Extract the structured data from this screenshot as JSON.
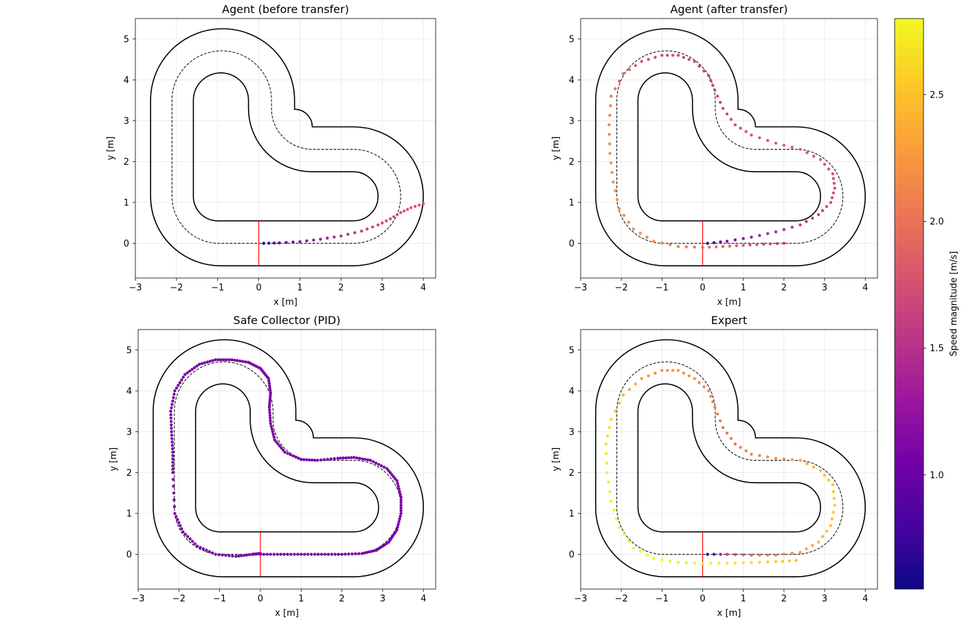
{
  "chart_data": [
    {
      "type": "scatter",
      "title": "Agent (before transfer)",
      "xlabel": "x [m]",
      "ylabel": "y [m]",
      "xlim": [
        -3,
        4.3
      ],
      "ylim": [
        -0.85,
        5.5
      ],
      "xticks": [
        -3,
        -2,
        -1,
        0,
        1,
        2,
        3,
        4
      ],
      "yticks": [
        0,
        1,
        2,
        3,
        4,
        5
      ],
      "grid": true,
      "path": {
        "x": [
          0.12,
          0.5,
          1.0,
          1.5,
          2.0,
          2.5,
          2.9,
          3.2,
          3.45,
          3.7,
          4.0
        ],
        "y": [
          0.0,
          0.01,
          0.04,
          0.1,
          0.18,
          0.3,
          0.45,
          0.6,
          0.75,
          0.87,
          0.97
        ],
        "speed": [
          0.6,
          0.95,
          1.15,
          1.35,
          1.5,
          1.62,
          1.7,
          1.74,
          1.77,
          1.8,
          1.82
        ]
      }
    },
    {
      "type": "scatter",
      "title": "Agent (after transfer)",
      "xlabel": "x [m]",
      "ylabel": "y [m]",
      "xlim": [
        -3,
        4.3
      ],
      "ylim": [
        -0.85,
        5.5
      ],
      "xticks": [
        -3,
        -2,
        -1,
        0,
        1,
        2,
        3,
        4
      ],
      "yticks": [
        0,
        1,
        2,
        3,
        4,
        5
      ],
      "grid": true,
      "path": {
        "x": [
          0.12,
          0.6,
          1.2,
          1.8,
          2.4,
          2.85,
          3.15,
          3.25,
          3.2,
          2.9,
          2.4,
          1.8,
          1.2,
          0.8,
          0.5,
          0.3,
          0.15,
          -0.2,
          -0.6,
          -1.0,
          -1.5,
          -1.95,
          -2.25,
          -2.3,
          -2.28,
          -2.2,
          -2.05,
          -1.7,
          -1.2,
          -0.6,
          0.0,
          0.5,
          1.0,
          1.5,
          2.0
        ],
        "y": [
          0.0,
          0.05,
          0.15,
          0.28,
          0.45,
          0.7,
          1.0,
          1.35,
          1.7,
          2.05,
          2.3,
          2.45,
          2.65,
          2.9,
          3.3,
          3.75,
          4.1,
          4.45,
          4.6,
          4.6,
          4.45,
          4.15,
          3.6,
          2.9,
          2.2,
          1.5,
          0.85,
          0.35,
          0.05,
          -0.08,
          -0.1,
          -0.08,
          -0.05,
          -0.02,
          0.0
        ],
        "speed": [
          0.6,
          1.1,
          1.3,
          1.45,
          1.55,
          1.62,
          1.7,
          1.75,
          1.78,
          1.8,
          1.82,
          1.83,
          1.8,
          1.75,
          1.7,
          1.65,
          1.63,
          1.65,
          1.7,
          1.72,
          1.78,
          1.9,
          2.05,
          2.15,
          2.2,
          2.22,
          2.2,
          2.18,
          2.15,
          2.1,
          2.0,
          1.9,
          1.8,
          1.7,
          1.6
        ]
      }
    },
    {
      "type": "scatter",
      "title": "Safe Collector (PID)",
      "xlabel": "x [m]",
      "ylabel": "y [m]",
      "xlim": [
        -3,
        4.3
      ],
      "ylim": [
        -0.85,
        5.5
      ],
      "xticks": [
        -3,
        -2,
        -1,
        0,
        1,
        2,
        3,
        4
      ],
      "yticks": [
        0,
        1,
        2,
        3,
        4,
        5
      ],
      "grid": true,
      "path": {
        "x": [
          0.0,
          0.5,
          1.0,
          1.5,
          2.0,
          2.5,
          2.85,
          3.15,
          3.35,
          3.45,
          3.45,
          3.35,
          3.1,
          2.7,
          2.3,
          1.9,
          1.4,
          1.0,
          0.6,
          0.35,
          0.25,
          0.22,
          0.25,
          0.2,
          0.0,
          -0.3,
          -0.7,
          -1.1,
          -1.5,
          -1.85,
          -2.1,
          -2.2,
          -2.18,
          -2.15,
          -2.15,
          -2.1,
          -1.9,
          -1.55,
          -1.1,
          -0.6,
          -0.2,
          0.0
        ],
        "y": [
          0.0,
          0.0,
          0.0,
          0.0,
          0.0,
          0.02,
          0.1,
          0.3,
          0.6,
          1.0,
          1.4,
          1.8,
          2.1,
          2.3,
          2.37,
          2.35,
          2.3,
          2.32,
          2.5,
          2.8,
          3.2,
          3.6,
          3.95,
          4.3,
          4.55,
          4.7,
          4.76,
          4.76,
          4.65,
          4.4,
          4.0,
          3.5,
          3.0,
          2.5,
          2.0,
          1.0,
          0.55,
          0.2,
          0.0,
          -0.05,
          0.0,
          0.02
        ],
        "speed": [
          1.1,
          1.1,
          1.1,
          1.1,
          1.1,
          1.1,
          1.1,
          1.1,
          1.1,
          1.1,
          1.1,
          1.1,
          1.1,
          1.1,
          1.1,
          1.1,
          1.1,
          1.1,
          1.1,
          1.1,
          1.1,
          1.1,
          1.1,
          1.1,
          1.1,
          1.1,
          1.1,
          1.1,
          1.1,
          1.1,
          1.1,
          1.1,
          1.1,
          1.1,
          1.1,
          1.1,
          1.1,
          1.1,
          1.1,
          1.1,
          1.1,
          1.1
        ]
      }
    },
    {
      "type": "scatter",
      "title": "Expert",
      "xlabel": "x [m]",
      "ylabel": "y [m]",
      "xlim": [
        -3,
        4.3
      ],
      "ylim": [
        -0.85,
        5.5
      ],
      "xticks": [
        -3,
        -2,
        -1,
        0,
        1,
        2,
        3,
        4
      ],
      "yticks": [
        0,
        1,
        2,
        3,
        4,
        5
      ],
      "grid": true,
      "path": {
        "x": [
          0.12,
          0.6,
          1.2,
          1.8,
          2.4,
          2.85,
          3.15,
          3.25,
          3.2,
          2.9,
          2.4,
          1.8,
          1.2,
          0.8,
          0.5,
          0.3,
          0.15,
          -0.2,
          -0.6,
          -1.0,
          -1.5,
          -1.95,
          -2.25,
          -2.38,
          -2.35,
          -2.25,
          -2.05,
          -1.7,
          -1.2,
          -0.6,
          0.0,
          0.6,
          1.2,
          1.8,
          2.3
        ],
        "y": [
          0.0,
          0.0,
          -0.02,
          -0.02,
          0.05,
          0.3,
          0.7,
          1.2,
          1.7,
          2.05,
          2.3,
          2.35,
          2.45,
          2.7,
          3.1,
          3.6,
          4.0,
          4.3,
          4.5,
          4.5,
          4.3,
          3.9,
          3.3,
          2.7,
          2.0,
          1.3,
          0.65,
          0.15,
          -0.1,
          -0.2,
          -0.22,
          -0.22,
          -0.2,
          -0.18,
          -0.15
        ],
        "speed": [
          0.7,
          1.6,
          1.9,
          2.1,
          2.25,
          2.4,
          2.5,
          2.55,
          2.5,
          2.45,
          2.35,
          2.2,
          2.1,
          2.05,
          2.05,
          2.1,
          2.15,
          2.2,
          2.2,
          2.2,
          2.25,
          2.45,
          2.6,
          2.7,
          2.75,
          2.78,
          2.8,
          2.8,
          2.8,
          2.78,
          2.75,
          2.7,
          2.65,
          2.55,
          2.45
        ]
      }
    }
  ],
  "colorbar": {
    "label": "Speed magnitude [m/s]",
    "min": 0.55,
    "max": 2.8,
    "ticks": [
      "1.0",
      "1.5",
      "2.0",
      "2.5"
    ],
    "tick_values": [
      1.0,
      1.5,
      2.0,
      2.5
    ],
    "cmap": "plasma",
    "stops": [
      "#0d0887",
      "#46039f",
      "#7201a8",
      "#9c179e",
      "#bd3786",
      "#d8576b",
      "#ed7953",
      "#fb9f3a",
      "#fdca26",
      "#f0f921"
    ]
  },
  "track": {
    "line_color": "#000000",
    "centerline_color": "#000000",
    "start_line_color": "#ff0000"
  }
}
